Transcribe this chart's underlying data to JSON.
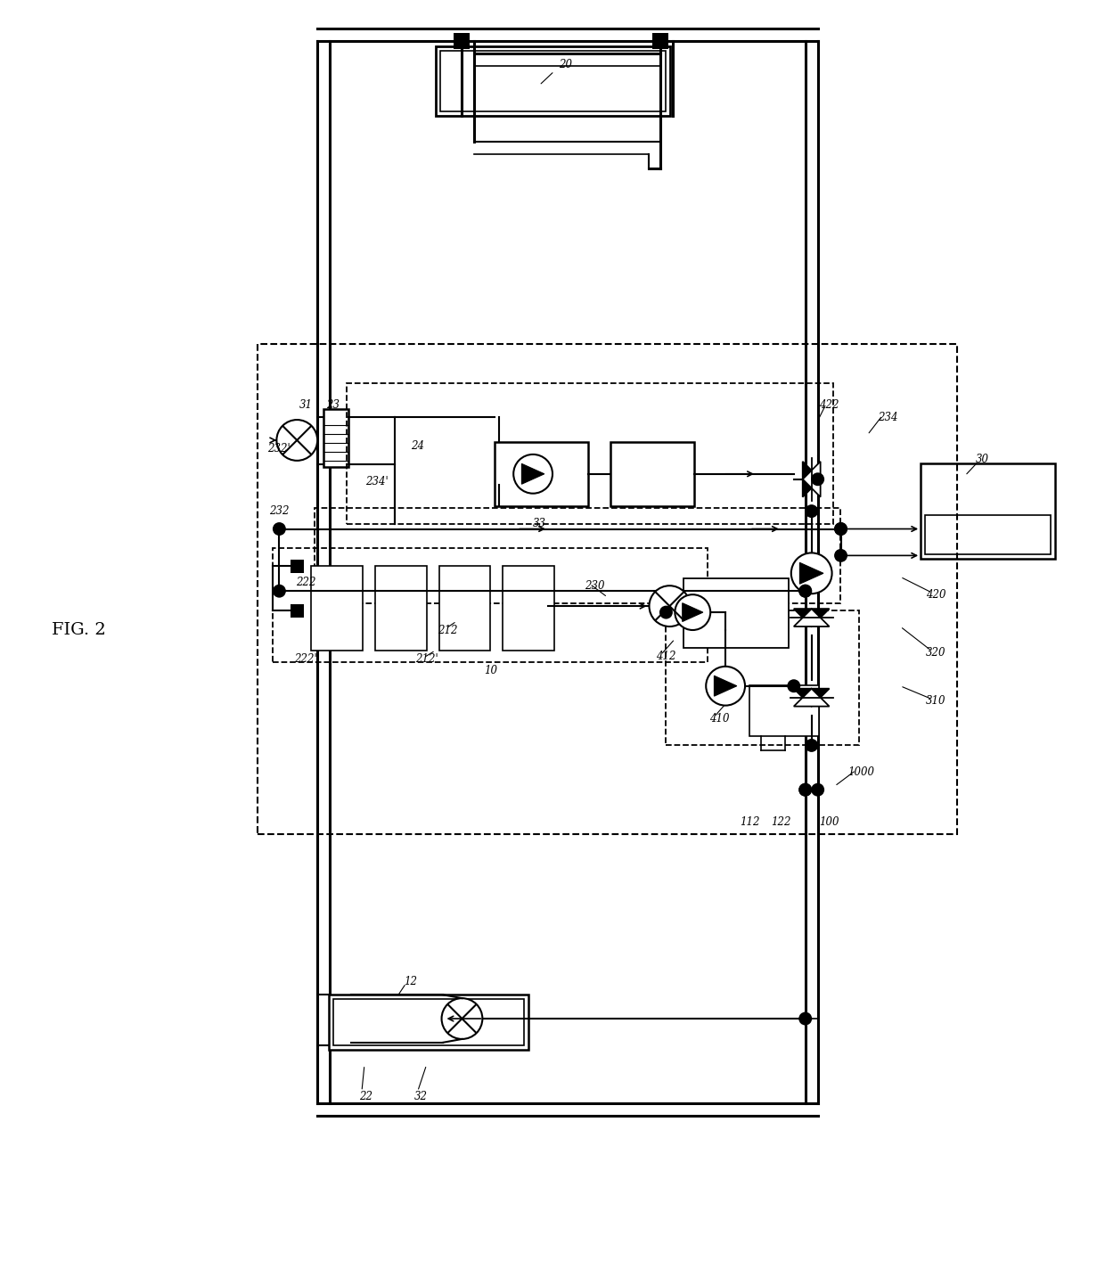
{
  "fig_width": 12.4,
  "fig_height": 14.15,
  "bg": "#ffffff",
  "lc": "#000000",
  "title": "FIG. 2",
  "labels": [
    [
      "20",
      6.35,
      13.45
    ],
    [
      "30",
      11.05,
      9.0
    ],
    [
      "10",
      5.5,
      6.62
    ],
    [
      "12",
      4.6,
      3.12
    ],
    [
      "22",
      4.1,
      1.82
    ],
    [
      "32",
      4.72,
      1.82
    ],
    [
      "31",
      3.42,
      9.62
    ],
    [
      "23",
      3.72,
      9.62
    ],
    [
      "24",
      4.68,
      9.15
    ],
    [
      "33",
      6.05,
      8.28
    ],
    [
      "230",
      6.68,
      7.58
    ],
    [
      "100",
      9.32,
      4.92
    ],
    [
      "112",
      8.42,
      4.92
    ],
    [
      "122",
      8.78,
      4.92
    ],
    [
      "1000",
      9.68,
      5.48
    ],
    [
      "310",
      10.52,
      6.28
    ],
    [
      "320",
      10.52,
      6.82
    ],
    [
      "420",
      10.52,
      7.48
    ],
    [
      "422",
      9.32,
      9.62
    ],
    [
      "234",
      9.98,
      9.48
    ],
    [
      "410",
      8.08,
      6.08
    ],
    [
      "412",
      7.48,
      6.78
    ],
    [
      "212",
      5.02,
      7.08
    ],
    [
      "212'",
      4.78,
      6.75
    ],
    [
      "222",
      3.42,
      7.62
    ],
    [
      "222'",
      3.42,
      6.75
    ],
    [
      "232",
      3.12,
      8.42
    ],
    [
      "232'",
      3.12,
      9.12
    ],
    [
      "234'",
      4.22,
      8.75
    ]
  ]
}
